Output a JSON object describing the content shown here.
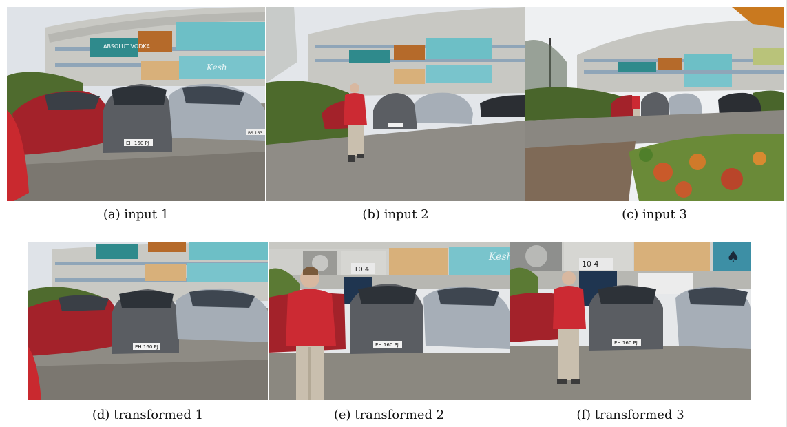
{
  "figure": {
    "panels": [
      {
        "id": "a",
        "caption": "(a) input 1"
      },
      {
        "id": "b",
        "caption": "(b) input 2"
      },
      {
        "id": "c",
        "caption": "(c) input 3"
      },
      {
        "id": "d",
        "caption": "(d) transformed 1"
      },
      {
        "id": "e",
        "caption": "(e) transformed 2"
      },
      {
        "id": "f",
        "caption": "(f) transformed 3"
      }
    ],
    "mural_text": {
      "brand": "ABSOLUT VODKA",
      "signature": "Kesh"
    },
    "plates": [
      "EH 160 PJ",
      "EH 160 PJ",
      "EH 160 PJ",
      "BS 163",
      "EH 160 PJ",
      "EH 160 PJ"
    ],
    "door_sign": "10 4"
  }
}
